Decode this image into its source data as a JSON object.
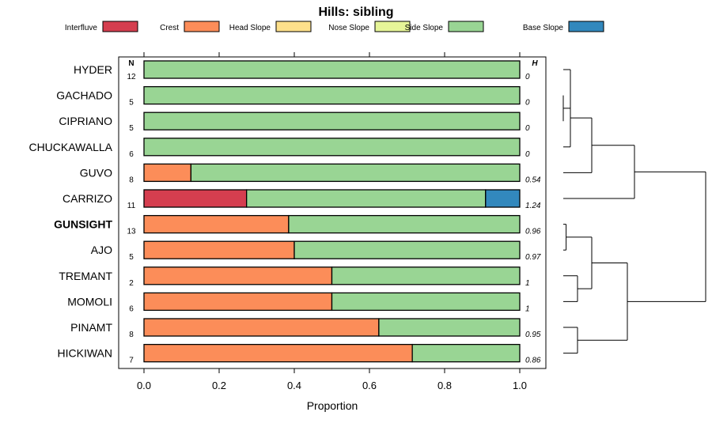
{
  "chart_data": {
    "type": "bar",
    "orientation": "horizontal",
    "stacked": true,
    "title": "Hills: sibling",
    "xlabel": "Proportion",
    "ylabel": "",
    "xlim": [
      0,
      1
    ],
    "x_ticks": [
      0.0,
      0.2,
      0.4,
      0.6,
      0.8,
      1.0
    ],
    "x_tick_labels": [
      "0.0",
      "0.2",
      "0.4",
      "0.6",
      "0.8",
      "1.0"
    ],
    "n_header": "N",
    "h_header": "H",
    "legend": [
      {
        "name": "Interfluve",
        "color": "#d53e4f"
      },
      {
        "name": "Crest",
        "color": "#fc8d59"
      },
      {
        "name": "Head Slope",
        "color": "#fee08b"
      },
      {
        "name": "Nose Slope",
        "color": "#e6f598"
      },
      {
        "name": "Side Slope",
        "color": "#99d594"
      },
      {
        "name": "Base Slope",
        "color": "#3288bd"
      }
    ],
    "categories": [
      "HYDER",
      "GACHADO",
      "CIPRIANO",
      "CHUCKAWALLA",
      "GUVO",
      "CARRIZO",
      "GUNSIGHT",
      "AJO",
      "TREMANT",
      "MOMOLI",
      "PINAMT",
      "HICKIWAN"
    ],
    "bold_category": "GUNSIGHT",
    "n_values": [
      "12",
      "5",
      "5",
      "6",
      "8",
      "11",
      "13",
      "5",
      "2",
      "6",
      "8",
      "7"
    ],
    "h_values": [
      "0",
      "0",
      "0",
      "0",
      "0.54",
      "1.24",
      "0.96",
      "0.97",
      "1",
      "1",
      "0.95",
      "0.86"
    ],
    "series": [
      {
        "name": "Interfluve",
        "values": [
          0,
          0,
          0,
          0,
          0,
          0.273,
          0,
          0,
          0,
          0,
          0,
          0
        ]
      },
      {
        "name": "Crest",
        "values": [
          0,
          0,
          0,
          0,
          0.125,
          0,
          0.385,
          0.4,
          0.5,
          0.5,
          0.625,
          0.714
        ]
      },
      {
        "name": "Head Slope",
        "values": [
          0,
          0,
          0,
          0,
          0,
          0,
          0,
          0,
          0,
          0,
          0,
          0
        ]
      },
      {
        "name": "Nose Slope",
        "values": [
          0,
          0,
          0,
          0,
          0,
          0,
          0,
          0,
          0,
          0,
          0,
          0
        ]
      },
      {
        "name": "Side Slope",
        "values": [
          1,
          1,
          1,
          1,
          0.875,
          0.636,
          0.615,
          0.6,
          0.5,
          0.5,
          0.375,
          0.286
        ]
      },
      {
        "name": "Base Slope",
        "values": [
          0,
          0,
          0,
          0,
          0,
          0.091,
          0,
          0,
          0,
          0,
          0,
          0
        ]
      }
    ],
    "dendrogram": {
      "leaf_order": [
        "HYDER",
        "GACHADO",
        "CIPRIANO",
        "CHUCKAWALLA",
        "GUVO",
        "CARRIZO",
        "GUNSIGHT",
        "AJO",
        "TREMANT",
        "MOMOLI",
        "PINAMT",
        "HICKIWAN"
      ],
      "merges": [
        {
          "left": -2,
          "right": -3,
          "height": 0
        },
        {
          "left": 1,
          "right": -1,
          "height": 0.05
        },
        {
          "left": 2,
          "right": -4,
          "height": 0.05
        },
        {
          "left": 3,
          "right": -5,
          "height": 0.2
        },
        {
          "left": 4,
          "right": -6,
          "height": 0.5
        },
        {
          "left": -7,
          "right": -8,
          "height": 0.02
        },
        {
          "left": -9,
          "right": -10,
          "height": 0.1
        },
        {
          "left": 6,
          "right": 7,
          "height": 0.2
        },
        {
          "left": -11,
          "right": -12,
          "height": 0.1
        },
        {
          "left": 8,
          "right": 9,
          "height": 0.45
        },
        {
          "left": 5,
          "right": 10,
          "height": 1.0
        }
      ]
    }
  }
}
